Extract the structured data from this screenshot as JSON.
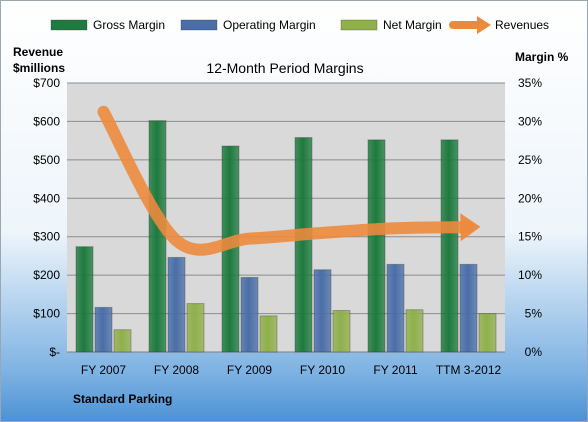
{
  "chart_data": {
    "type": "bar",
    "title": "12-Month Period Margins",
    "subtitle": "Standard Parking",
    "categories": [
      "FY 2007",
      "FY 2008",
      "FY 2009",
      "FY 2010",
      "FY 2011",
      "TTM 3-2012"
    ],
    "left_axis": {
      "label_line1": "Revenue",
      "label_line2": "$millions",
      "ylim": [
        0,
        700
      ],
      "ticks": [
        0,
        100,
        200,
        300,
        400,
        500,
        600,
        700
      ],
      "tick_labels": [
        "$-",
        "$100",
        "$200",
        "$300",
        "$400",
        "$500",
        "$600",
        "$700"
      ]
    },
    "right_axis": {
      "label": "Margin %",
      "ylim": [
        0,
        35
      ],
      "ticks": [
        0,
        5,
        10,
        15,
        20,
        25,
        30,
        35
      ],
      "tick_labels": [
        "0%",
        "5%",
        "10%",
        "15%",
        "20%",
        "25%",
        "30%",
        "35%"
      ]
    },
    "series": [
      {
        "name": "Gross Margin",
        "kind": "bar",
        "axis": "right",
        "color": "#1e7a3e",
        "values": [
          13.7,
          30.1,
          26.8,
          27.9,
          27.6,
          27.6
        ]
      },
      {
        "name": "Operating Margin",
        "kind": "bar",
        "axis": "right",
        "color": "#4a6ea8",
        "values": [
          5.8,
          12.3,
          9.7,
          10.7,
          11.4,
          11.4
        ]
      },
      {
        "name": "Net Margin",
        "kind": "bar",
        "axis": "right",
        "color": "#8fb04a",
        "values": [
          2.9,
          6.3,
          4.7,
          5.4,
          5.5,
          5.0
        ]
      },
      {
        "name": "Revenues",
        "kind": "line",
        "axis": "left",
        "color": "#ec8a3c",
        "values": [
          625,
          290,
          295,
          310,
          322,
          325
        ]
      }
    ],
    "grid": true,
    "legend": "top"
  }
}
